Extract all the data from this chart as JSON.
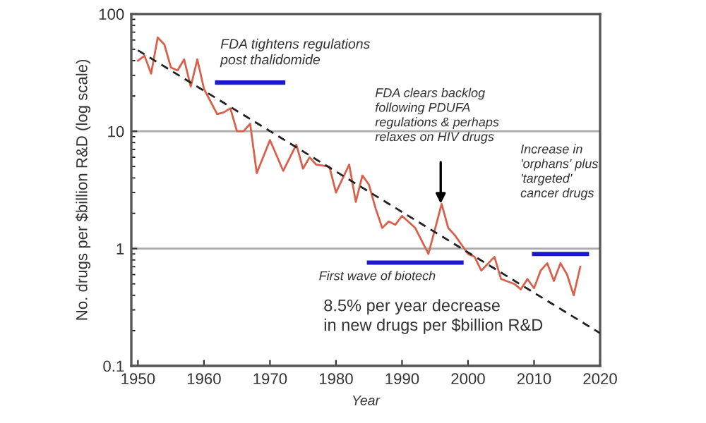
{
  "chart_data": {
    "type": "line",
    "xlabel": "Year",
    "ylabel": "No. drugs per $billion R&D (log scale)",
    "log": "y",
    "xlim": [
      1949,
      2020
    ],
    "xticks": [
      1950,
      1960,
      1970,
      1980,
      1990,
      2000,
      2010,
      2020
    ],
    "ylim": [
      0.1,
      100
    ],
    "yticks": [
      0.1,
      1,
      10,
      100
    ],
    "grid": "y",
    "marker": "none",
    "series": [
      {
        "color": "#d9604a",
        "line_style": "solid",
        "x": [
          1950,
          1951,
          1952,
          1953,
          1954,
          1955,
          1956,
          1957,
          1958,
          1959,
          1960,
          1962,
          1963,
          1964,
          1965,
          1966,
          1967,
          1968,
          1970,
          1972,
          1974,
          1975,
          1976,
          1977,
          1979,
          1980,
          1982,
          1983,
          1984,
          1985,
          1986,
          1987,
          1988,
          1989,
          1990,
          1992,
          1994,
          1996,
          1997,
          1998,
          2000,
          2001,
          2002,
          2004,
          2005,
          2007,
          2008,
          2009,
          2010,
          2011,
          2012,
          2013,
          2014,
          2015,
          2016,
          2017
        ],
        "values": [
          40,
          44,
          31,
          63,
          55,
          35,
          33,
          41,
          24,
          41,
          23,
          14,
          14.5,
          15.7,
          10,
          10,
          11.6,
          4.4,
          8.4,
          4.6,
          7.7,
          4.8,
          6,
          5.2,
          5,
          3,
          5.2,
          2.5,
          4.2,
          3.5,
          2.2,
          1.5,
          1.7,
          1.6,
          1.9,
          1.5,
          0.9,
          2.4,
          1.5,
          1.3,
          0.9,
          0.85,
          0.65,
          0.85,
          0.55,
          0.5,
          0.45,
          0.55,
          0.46,
          0.65,
          0.75,
          0.53,
          0.75,
          0.6,
          0.4,
          0.7
        ]
      },
      {
        "color": "#222222",
        "line_style": "dashed",
        "x": [
          1950,
          2020
        ],
        "values": [
          49,
          0.19
        ]
      },
      {
        "color": "#1a1acc",
        "line_style": "solid",
        "x": [
          1962,
          1972
        ],
        "values": [
          26,
          26
        ]
      },
      {
        "color": "#1a1acc",
        "line_style": "solid",
        "x": [
          1985,
          1999
        ],
        "values": [
          0.76,
          0.76
        ]
      },
      {
        "color": "#1a1acc",
        "line_style": "solid",
        "x": [
          2010,
          2018
        ],
        "values": [
          0.9,
          0.9
        ]
      }
    ],
    "annotations": [
      "FDA tightens regulations\npost thalidomide",
      "FDA clears backlog\nfollowing PDUFA\nregulations & perhaps\nrelaxes on HIV drugs",
      "Increase in\n'orphans' plus\n'targeted'\ncancer drugs",
      "First wave of biotech",
      "8.5% per year decrease\nin new drugs per $billion R&D"
    ]
  }
}
